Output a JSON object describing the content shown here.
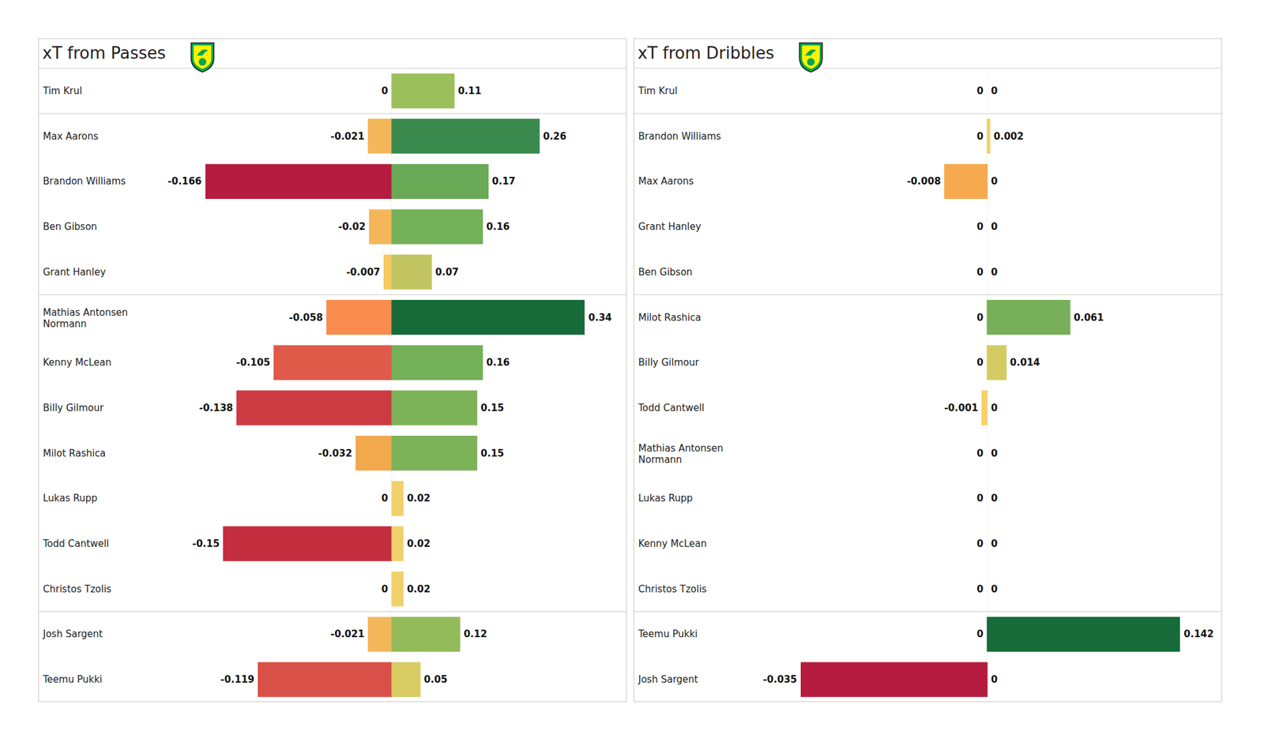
{
  "chart_data": [
    {
      "type": "bar",
      "orientation": "horizontal",
      "title": "xT from Passes",
      "categories": [
        "Tim Krul",
        "Max Aarons",
        "Brandon Williams",
        "Ben Gibson",
        "Grant Hanley",
        "Mathias Antonsen Normann",
        "Kenny McLean",
        "Billy Gilmour",
        "Milot Rashica",
        "Lukas Rupp",
        "Todd Cantwell",
        "Christos Tzolis",
        "Josh Sargent",
        "Teemu Pukki"
      ],
      "series": [
        {
          "values": [
            0,
            -0.021,
            -0.166,
            -0.02,
            -0.007,
            -0.058,
            -0.105,
            -0.138,
            -0.032,
            0,
            -0.15,
            0,
            -0.021,
            -0.119
          ],
          "colors": [
            "#f5dc73",
            "#f3b75a",
            "#b51c3f",
            "#f3b75a",
            "#f3ca60",
            "#f98c4e",
            "#e05a49",
            "#cc3a42",
            "#f2a94e",
            "#f5dc73",
            "#c42e3f",
            "#f5dc73",
            "#f3b75a",
            "#d95048"
          ]
        },
        {
          "values": [
            0.11,
            0.26,
            0.17,
            0.16,
            0.07,
            0.34,
            0.16,
            0.15,
            0.15,
            0.02,
            0.02,
            0.02,
            0.12,
            0.05
          ],
          "colors": [
            "#9bbf5a",
            "#3a8a4e",
            "#6aaa56",
            "#74b057",
            "#c2c562",
            "#166b39",
            "#74b057",
            "#7db359",
            "#7db359",
            "#f0d06a",
            "#f0d06a",
            "#f0d06a",
            "#93bb5a",
            "#d7cb62"
          ]
        }
      ],
      "xlim": [
        -0.166,
        0.34
      ],
      "xticks": [
        0
      ],
      "data_labels": true,
      "tick_labels": false
    },
    {
      "type": "bar",
      "orientation": "horizontal",
      "title": "xT from Dribbles",
      "categories": [
        "Tim Krul",
        "Brandon Williams",
        "Max Aarons",
        "Grant Hanley",
        "Ben Gibson",
        "Milot Rashica",
        "Billy Gilmour",
        "Todd Cantwell",
        "Mathias Antonsen Normann",
        "Lukas Rupp",
        "Kenny McLean",
        "Christos Tzolis",
        "Teemu Pukki",
        "Josh Sargent"
      ],
      "series": [
        {
          "values": [
            0,
            0,
            -0.008,
            0,
            0,
            0,
            0,
            -0.001,
            0,
            0,
            0,
            0,
            0,
            -0.035
          ],
          "colors": [
            "#f0d06a",
            "#f0d06a",
            "#f6a94f",
            "#f0d06a",
            "#f0d06a",
            "#f0d06a",
            "#f0d06a",
            "#f5d26a",
            "#f0d06a",
            "#f0d06a",
            "#f0d06a",
            "#f0d06a",
            "#f0d06a",
            "#b51c3f"
          ]
        },
        {
          "values": [
            0,
            0.002,
            0,
            0,
            0,
            0.061,
            0.014,
            0,
            0,
            0,
            0,
            0,
            0.142,
            0
          ],
          "colors": [
            "#f0d06a",
            "#f0d06a",
            "#f0d06a",
            "#f0d06a",
            "#f0d06a",
            "#77b058",
            "#d4cb62",
            "#f0d06a",
            "#f0d06a",
            "#f0d06a",
            "#f0d06a",
            "#f0d06a",
            "#166b39",
            "#f0d06a"
          ]
        }
      ],
      "xlim": [
        -0.035,
        0.142
      ],
      "xticks": [
        0
      ],
      "data_labels": true,
      "tick_labels": false
    }
  ]
}
